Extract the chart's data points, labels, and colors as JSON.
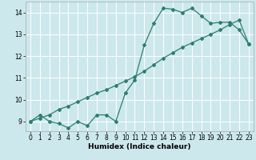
{
  "xlabel": "Humidex (Indice chaleur)",
  "bg_color": "#cce8ec",
  "grid_color": "#ffffff",
  "line_color": "#2e7d6e",
  "xlim": [
    -0.5,
    23.5
  ],
  "ylim": [
    8.55,
    14.5
  ],
  "xticks": [
    0,
    1,
    2,
    3,
    4,
    5,
    6,
    7,
    8,
    9,
    10,
    11,
    12,
    13,
    14,
    15,
    16,
    17,
    18,
    19,
    20,
    21,
    22,
    23
  ],
  "yticks": [
    9,
    10,
    11,
    12,
    13,
    14
  ],
  "curve1_x": [
    0,
    1,
    2,
    3,
    4,
    5,
    6,
    7,
    8,
    9,
    10,
    11,
    12,
    13,
    14,
    15,
    16,
    17,
    18,
    19,
    20,
    21,
    22,
    23
  ],
  "curve1_y": [
    9.0,
    9.3,
    9.0,
    8.9,
    8.7,
    9.0,
    8.8,
    9.3,
    9.3,
    9.0,
    10.3,
    10.9,
    12.5,
    13.5,
    14.2,
    14.15,
    14.0,
    14.2,
    13.85,
    13.5,
    13.55,
    13.55,
    13.2,
    12.55
  ],
  "curve2_x": [
    0,
    1,
    2,
    3,
    4,
    5,
    6,
    7,
    8,
    9,
    10,
    11,
    12,
    13,
    14,
    15,
    16,
    17,
    18,
    19,
    20,
    21,
    22,
    23
  ],
  "curve2_y": [
    9.0,
    9.15,
    9.3,
    9.55,
    9.7,
    9.9,
    10.1,
    10.3,
    10.45,
    10.65,
    10.85,
    11.05,
    11.3,
    11.6,
    11.9,
    12.15,
    12.4,
    12.6,
    12.8,
    13.0,
    13.2,
    13.45,
    13.65,
    12.55
  ]
}
